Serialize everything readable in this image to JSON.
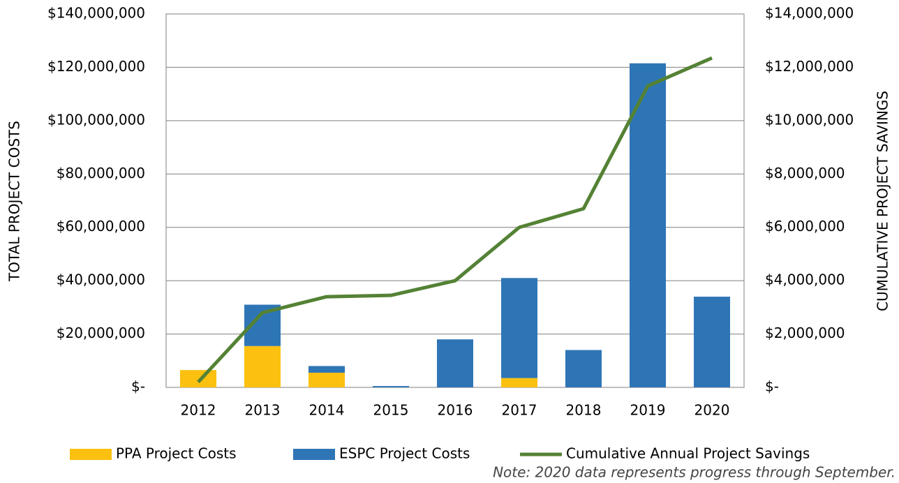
{
  "chart_data": {
    "type": "bar",
    "categories": [
      "2012",
      "2013",
      "2014",
      "2015",
      "2016",
      "2017",
      "2018",
      "2019",
      "2020"
    ],
    "series": [
      {
        "name": "PPA Project Costs",
        "color": "#fcc010",
        "values": [
          6500000,
          15500000,
          5500000,
          0,
          0,
          3500000,
          0,
          0,
          0
        ]
      },
      {
        "name": "ESPC Project Costs",
        "color": "#2e75b6",
        "values": [
          0,
          15500000,
          2500000,
          500000,
          18000000,
          37500000,
          14000000,
          121500000,
          34000000
        ]
      },
      {
        "name": "Cumulative Annual Project Savings",
        "color": "#548235",
        "type": "line",
        "axis": "y2",
        "values": [
          200000,
          2800000,
          3400000,
          3450000,
          4000000,
          6000000,
          6700000,
          11300000,
          12350000
        ]
      }
    ],
    "ylabel": "TOTAL PROJECT COSTS",
    "y2label": "CUMULATIVE PROJECT SAVINGS",
    "ylim": [
      0,
      140000000
    ],
    "yticks": [
      {
        "value": 0,
        "label": "$-"
      },
      {
        "value": 20000000,
        "label": "$20,000,000"
      },
      {
        "value": 40000000,
        "label": "$40,000,000"
      },
      {
        "value": 60000000,
        "label": "$60,000,000"
      },
      {
        "value": 80000000,
        "label": "$80,000,000"
      },
      {
        "value": 100000000,
        "label": "$100,000,000"
      },
      {
        "value": 120000000,
        "label": "$120,000,000"
      },
      {
        "value": 140000000,
        "label": "$140,000,000"
      }
    ],
    "y2lim": [
      0,
      14000000
    ],
    "y2ticks": [
      {
        "value": 0,
        "label": "$-"
      },
      {
        "value": 2000000,
        "label": "$2,000,000"
      },
      {
        "value": 4000000,
        "label": "$4,000,000"
      },
      {
        "value": 6000000,
        "label": "$6,000,000"
      },
      {
        "value": 8000000,
        "label": "$8,000,000"
      },
      {
        "value": 10000000,
        "label": "$10,000,000"
      },
      {
        "value": 12000000,
        "label": "$12,000,000"
      },
      {
        "value": 14000000,
        "label": "$14,000,000"
      }
    ],
    "grid": true,
    "legend": "bottom",
    "note": "Note: 2020 data represents progress through September."
  }
}
